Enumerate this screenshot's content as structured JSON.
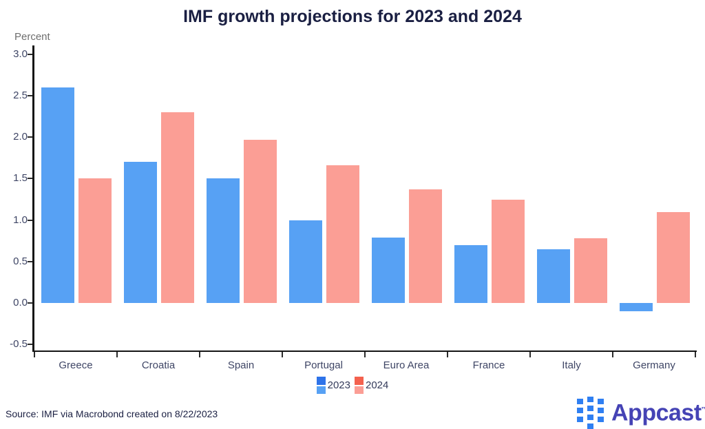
{
  "page": {
    "title": "IMF growth projections for 2023 and 2024",
    "unit_label": "Percent",
    "source_note": "Source: IMF via Macrobond created on 8/22/2023"
  },
  "chart_data": {
    "type": "bar",
    "title": "IMF growth projections for 2023 and 2024",
    "ylabel": "Percent",
    "categories": [
      "Greece",
      "Croatia",
      "Spain",
      "Portugal",
      "Euro Area",
      "France",
      "Italy",
      "Germany"
    ],
    "series": [
      {
        "name": "2023",
        "color": "#57a1f4",
        "legend_accent": "#2e73e9",
        "values": [
          2.6,
          1.7,
          1.5,
          1.0,
          0.79,
          0.7,
          0.65,
          -0.1
        ]
      },
      {
        "name": "2024",
        "color": "#fb9e95",
        "legend_accent": "#f4614e",
        "values": [
          1.5,
          2.3,
          1.97,
          1.66,
          1.37,
          1.25,
          0.78,
          1.1
        ]
      }
    ],
    "ylim": [
      -0.5,
      3.0
    ],
    "ytick_step": 0.5,
    "ytick_format": "one_decimal",
    "grid": false,
    "legend_position": "bottom",
    "axis_color": "#141414",
    "label_color": "#3e4565"
  },
  "branding": {
    "logo_text": "Appcast",
    "trademark": "™",
    "logo_text_color": "#4543b5",
    "logo_icon_color": "#2f7ff2"
  }
}
